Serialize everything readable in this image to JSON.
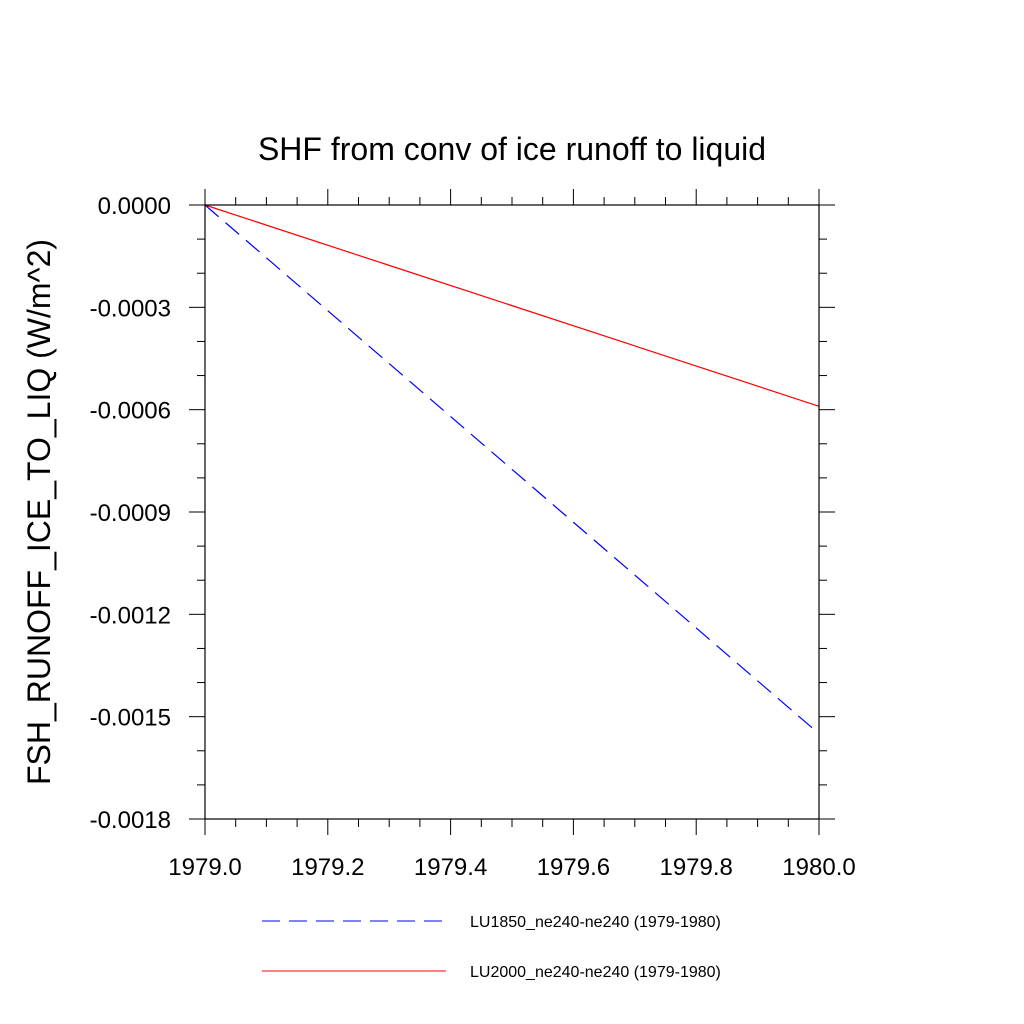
{
  "chart_data": {
    "type": "line",
    "title": "SHF from conv of ice runoff to liquid",
    "xlabel": "",
    "ylabel": "FSH_RUNOFF_ICE_TO_LIQ  (W/m^2)",
    "xlim": [
      1979.0,
      1980.0
    ],
    "ylim": [
      -0.0018,
      0.0
    ],
    "x_ticks": [
      1979.0,
      1979.2,
      1979.4,
      1979.6,
      1979.8,
      1980.0
    ],
    "x_tick_labels": [
      "1979.0",
      "1979.2",
      "1979.4",
      "1979.6",
      "1979.8",
      "1980.0"
    ],
    "y_ticks": [
      0.0,
      -0.0003,
      -0.0006,
      -0.0009,
      -0.0012,
      -0.0015,
      -0.0018
    ],
    "y_tick_labels": [
      "0.0000",
      "-0.0003",
      "-0.0006",
      "-0.0009",
      "-0.0012",
      "-0.0015",
      "-0.0018"
    ],
    "grid": false,
    "legend_position": "bottom",
    "series": [
      {
        "name": "LU1850_ne240-ne240 (1979-1980)",
        "color": "#0000ff",
        "dash": "dashed",
        "x": [
          1979.0,
          1980.0
        ],
        "y": [
          0.0,
          -0.00155
        ]
      },
      {
        "name": "LU2000_ne240-ne240 (1979-1980)",
        "color": "#ff0000",
        "dash": "solid",
        "x": [
          1979.0,
          1980.0
        ],
        "y": [
          0.0,
          -0.00059
        ]
      }
    ]
  }
}
